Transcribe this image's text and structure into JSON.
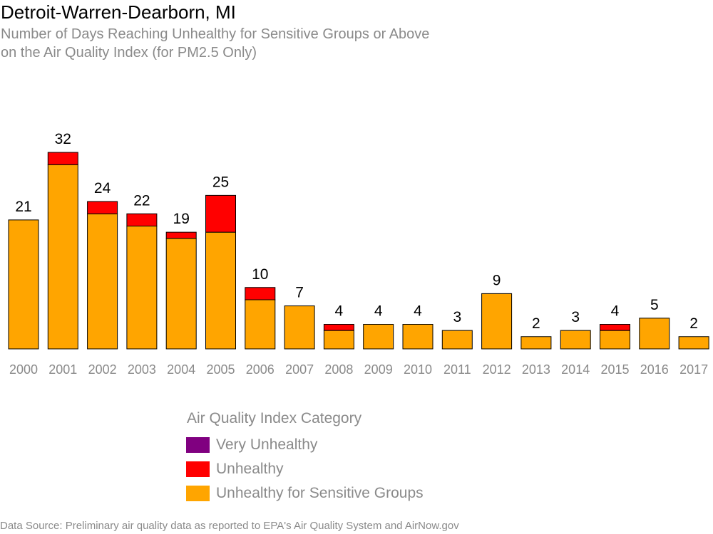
{
  "title": "Detroit-Warren-Dearborn, MI",
  "subtitle_line1": "Number of Days Reaching Unhealthy for Sensitive Groups or Above",
  "subtitle_line2": "on the Air Quality Index (for PM2.5 Only)",
  "source": "Data Source: Preliminary air quality data as reported to EPA's Air Quality System and AirNow.gov",
  "legend": {
    "title": "Air Quality Index Category",
    "items": [
      {
        "label": "Very Unhealthy",
        "color": "#800080"
      },
      {
        "label": "Unhealthy",
        "color": "#ff0000"
      },
      {
        "label": "Unhealthy for Sensitive Groups",
        "color": "#ffa500"
      }
    ]
  },
  "chart_data": {
    "type": "bar",
    "stacked": true,
    "categories": [
      "2000",
      "2001",
      "2002",
      "2003",
      "2004",
      "2005",
      "2006",
      "2007",
      "2008",
      "2009",
      "2010",
      "2011",
      "2012",
      "2013",
      "2014",
      "2015",
      "2016",
      "2017"
    ],
    "series": [
      {
        "name": "Unhealthy for Sensitive Groups",
        "color": "#ffa500",
        "values": [
          21,
          30,
          22,
          20,
          18,
          19,
          8,
          7,
          3,
          4,
          4,
          3,
          9,
          2,
          3,
          3,
          5,
          2
        ]
      },
      {
        "name": "Unhealthy",
        "color": "#ff0000",
        "values": [
          0,
          2,
          2,
          2,
          1,
          6,
          2,
          0,
          1,
          0,
          0,
          0,
          0,
          0,
          0,
          1,
          0,
          0
        ]
      },
      {
        "name": "Very Unhealthy",
        "color": "#800080",
        "values": [
          0,
          0,
          0,
          0,
          0,
          0,
          0,
          0,
          0,
          0,
          0,
          0,
          0,
          0,
          0,
          0,
          0,
          0
        ]
      }
    ],
    "totals": [
      21,
      32,
      24,
      22,
      19,
      25,
      10,
      7,
      4,
      4,
      4,
      3,
      9,
      2,
      3,
      4,
      5,
      2
    ],
    "ylim": [
      0,
      32
    ],
    "grid": false,
    "legend_position": "bottom"
  }
}
